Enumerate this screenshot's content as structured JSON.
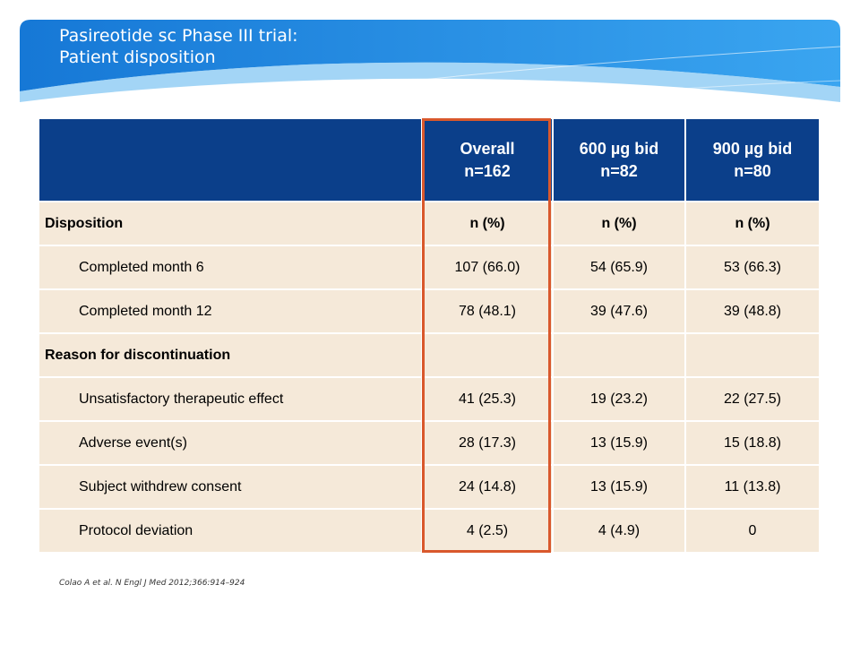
{
  "header": {
    "title_line1": "Pasireotide sc Phase III trial:",
    "title_line2": "Patient disposition"
  },
  "colors": {
    "banner_blue": "#1a8be3",
    "table_header": "#0b3f8a",
    "table_body": "#f5e9d9",
    "highlight_border": "#d9582c"
  },
  "table": {
    "columns": [
      {
        "line1": "",
        "line2": ""
      },
      {
        "line1": "Overall",
        "line2": "n=162"
      },
      {
        "line1": "600 µg bid",
        "line2": "n=82"
      },
      {
        "line1": "900 µg bid",
        "line2": "n=80"
      }
    ],
    "rows": [
      {
        "label": "Disposition",
        "values": [
          "n (%)",
          "n (%)",
          "n (%)"
        ]
      },
      {
        "label": "Completed month 6",
        "values": [
          "107 (66.0)",
          "54 (65.9)",
          "53 (66.3)"
        ]
      },
      {
        "label": "Completed month 12",
        "values": [
          "78 (48.1)",
          "39 (47.6)",
          "39 (48.8)"
        ]
      },
      {
        "label": "Reason for discontinuation",
        "values": [
          "",
          "",
          ""
        ]
      },
      {
        "label": "Unsatisfactory therapeutic effect",
        "values": [
          "41 (25.3)",
          "19 (23.2)",
          "22 (27.5)"
        ]
      },
      {
        "label": "Adverse event(s)",
        "values": [
          "28 (17.3)",
          "13 (15.9)",
          "15 (18.8)"
        ]
      },
      {
        "label": "Subject withdrew consent",
        "values": [
          "24 (14.8)",
          "13 (15.9)",
          "11 (13.8)"
        ]
      },
      {
        "label": "Protocol deviation",
        "values": [
          "4 (2.5)",
          "4 (4.9)",
          "0"
        ]
      }
    ]
  },
  "citation": "Colao A et al. N Engl J Med 2012;366:914–924"
}
